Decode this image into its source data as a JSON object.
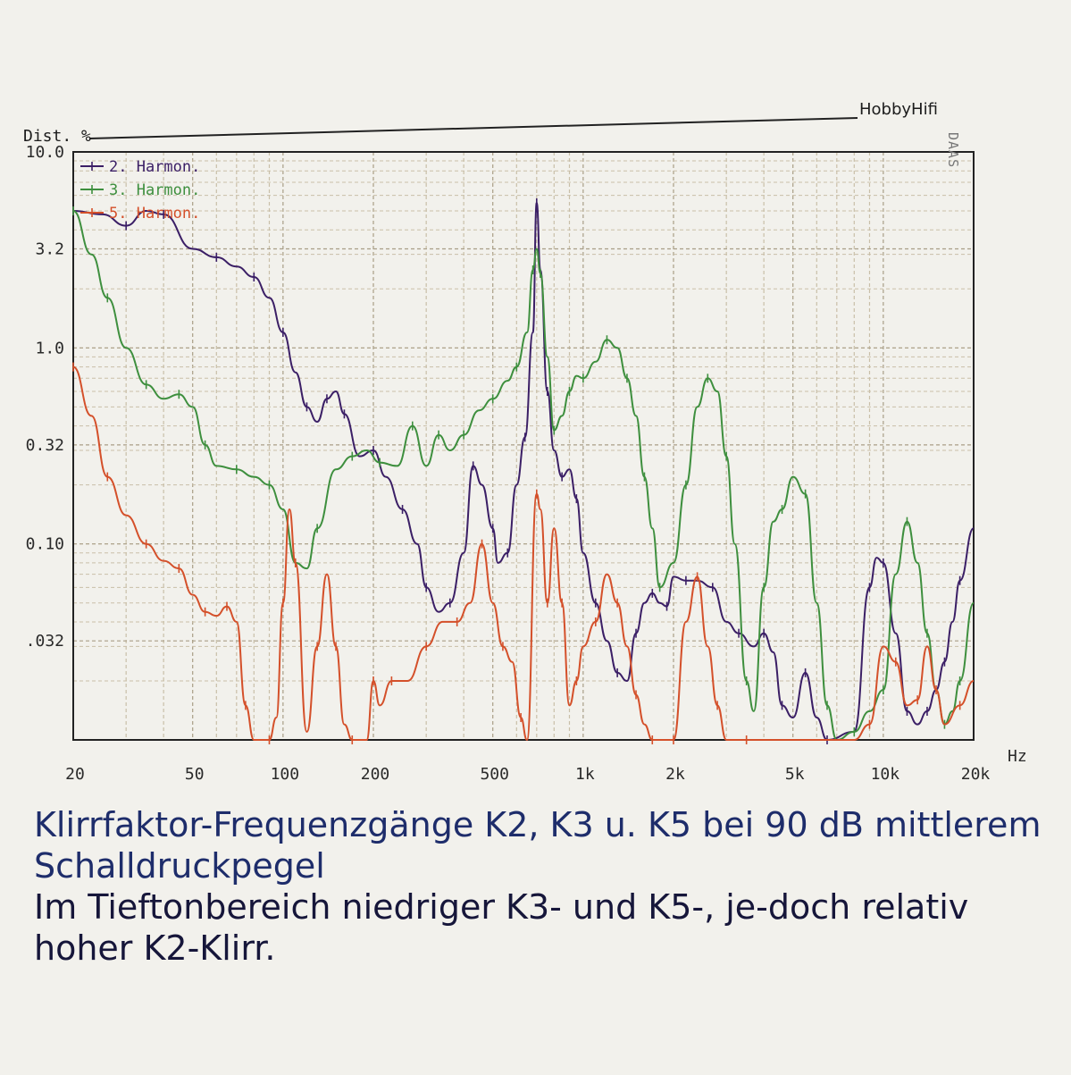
{
  "chart_data": {
    "type": "line",
    "brand": "HobbyHifi",
    "watermark": "DAAS",
    "ylabel": "Dist. %",
    "xunit": "Hz",
    "x_scale": "log",
    "y_scale": "log",
    "xlim": [
      20,
      20000
    ],
    "ylim": [
      0.01,
      10.0
    ],
    "y_ticks": [
      {
        "value": 10.0,
        "label": "10.0"
      },
      {
        "value": 3.2,
        "label": "3.2"
      },
      {
        "value": 1.0,
        "label": "1.0"
      },
      {
        "value": 0.32,
        "label": "0.32"
      },
      {
        "value": 0.1,
        "label": "0.10"
      },
      {
        "value": 0.032,
        "label": ".032"
      }
    ],
    "x_ticks": [
      {
        "value": 20,
        "label": "20"
      },
      {
        "value": 50,
        "label": "50"
      },
      {
        "value": 100,
        "label": "100"
      },
      {
        "value": 200,
        "label": "200"
      },
      {
        "value": 500,
        "label": "500"
      },
      {
        "value": 1000,
        "label": "1k"
      },
      {
        "value": 2000,
        "label": "2k"
      },
      {
        "value": 5000,
        "label": "5k"
      },
      {
        "value": 10000,
        "label": "10k"
      },
      {
        "value": 20000,
        "label": "20k"
      }
    ],
    "grid": true,
    "legend_position": "top-left",
    "series": [
      {
        "name": "2. Harmon.",
        "color": "#3b1f66",
        "points": [
          [
            20,
            5.0
          ],
          [
            25,
            4.8
          ],
          [
            30,
            4.2
          ],
          [
            35,
            5.0
          ],
          [
            40,
            4.8
          ],
          [
            50,
            3.2
          ],
          [
            60,
            2.9
          ],
          [
            70,
            2.6
          ],
          [
            80,
            2.3
          ],
          [
            90,
            1.8
          ],
          [
            100,
            1.2
          ],
          [
            110,
            0.75
          ],
          [
            120,
            0.5
          ],
          [
            130,
            0.42
          ],
          [
            140,
            0.55
          ],
          [
            150,
            0.6
          ],
          [
            160,
            0.46
          ],
          [
            180,
            0.28
          ],
          [
            200,
            0.3
          ],
          [
            220,
            0.22
          ],
          [
            250,
            0.15
          ],
          [
            280,
            0.1
          ],
          [
            300,
            0.06
          ],
          [
            330,
            0.045
          ],
          [
            360,
            0.05
          ],
          [
            400,
            0.09
          ],
          [
            430,
            0.25
          ],
          [
            460,
            0.2
          ],
          [
            500,
            0.12
          ],
          [
            520,
            0.08
          ],
          [
            560,
            0.09
          ],
          [
            600,
            0.2
          ],
          [
            640,
            0.35
          ],
          [
            680,
            1.2
          ],
          [
            700,
            5.5
          ],
          [
            720,
            2.5
          ],
          [
            760,
            0.6
          ],
          [
            800,
            0.3
          ],
          [
            850,
            0.22
          ],
          [
            900,
            0.24
          ],
          [
            950,
            0.17
          ],
          [
            1000,
            0.09
          ],
          [
            1100,
            0.05
          ],
          [
            1200,
            0.032
          ],
          [
            1300,
            0.022
          ],
          [
            1400,
            0.02
          ],
          [
            1500,
            0.035
          ],
          [
            1600,
            0.05
          ],
          [
            1700,
            0.056
          ],
          [
            1800,
            0.05
          ],
          [
            1900,
            0.048
          ],
          [
            2000,
            0.068
          ],
          [
            2200,
            0.065
          ],
          [
            2400,
            0.065
          ],
          [
            2700,
            0.06
          ],
          [
            3000,
            0.04
          ],
          [
            3300,
            0.035
          ],
          [
            3700,
            0.03
          ],
          [
            4000,
            0.035
          ],
          [
            4300,
            0.028
          ],
          [
            4600,
            0.015
          ],
          [
            5000,
            0.013
          ],
          [
            5500,
            0.022
          ],
          [
            6000,
            0.013
          ],
          [
            6500,
            0.01
          ],
          [
            8000,
            0.011
          ],
          [
            9000,
            0.06
          ],
          [
            9500,
            0.085
          ],
          [
            10000,
            0.08
          ],
          [
            11000,
            0.035
          ],
          [
            12000,
            0.014
          ],
          [
            13000,
            0.012
          ],
          [
            14000,
            0.014
          ],
          [
            15000,
            0.018
          ],
          [
            16000,
            0.025
          ],
          [
            17000,
            0.04
          ],
          [
            18000,
            0.065
          ],
          [
            20000,
            0.12
          ]
        ]
      },
      {
        "name": "3. Harmon.",
        "color": "#3e8f3e",
        "points": [
          [
            20,
            5.0
          ],
          [
            23,
            3.0
          ],
          [
            26,
            1.8
          ],
          [
            30,
            1.0
          ],
          [
            35,
            0.65
          ],
          [
            40,
            0.55
          ],
          [
            45,
            0.58
          ],
          [
            50,
            0.5
          ],
          [
            55,
            0.32
          ],
          [
            60,
            0.25
          ],
          [
            70,
            0.24
          ],
          [
            80,
            0.22
          ],
          [
            90,
            0.2
          ],
          [
            100,
            0.15
          ],
          [
            110,
            0.08
          ],
          [
            120,
            0.075
          ],
          [
            130,
            0.12
          ],
          [
            150,
            0.24
          ],
          [
            170,
            0.28
          ],
          [
            190,
            0.3
          ],
          [
            210,
            0.26
          ],
          [
            240,
            0.25
          ],
          [
            270,
            0.4
          ],
          [
            300,
            0.25
          ],
          [
            330,
            0.36
          ],
          [
            360,
            0.3
          ],
          [
            400,
            0.36
          ],
          [
            450,
            0.48
          ],
          [
            500,
            0.55
          ],
          [
            560,
            0.68
          ],
          [
            600,
            0.8
          ],
          [
            650,
            1.2
          ],
          [
            680,
            2.5
          ],
          [
            700,
            3.2
          ],
          [
            720,
            2.4
          ],
          [
            760,
            0.9
          ],
          [
            800,
            0.38
          ],
          [
            850,
            0.45
          ],
          [
            900,
            0.6
          ],
          [
            950,
            0.72
          ],
          [
            1000,
            0.7
          ],
          [
            1100,
            0.85
          ],
          [
            1200,
            1.1
          ],
          [
            1300,
            1.0
          ],
          [
            1400,
            0.7
          ],
          [
            1500,
            0.45
          ],
          [
            1600,
            0.22
          ],
          [
            1700,
            0.12
          ],
          [
            1800,
            0.06
          ],
          [
            2000,
            0.08
          ],
          [
            2200,
            0.2
          ],
          [
            2400,
            0.5
          ],
          [
            2600,
            0.7
          ],
          [
            2800,
            0.6
          ],
          [
            3000,
            0.28
          ],
          [
            3200,
            0.1
          ],
          [
            3500,
            0.02
          ],
          [
            3700,
            0.014
          ],
          [
            4000,
            0.06
          ],
          [
            4300,
            0.13
          ],
          [
            4600,
            0.15
          ],
          [
            5000,
            0.22
          ],
          [
            5500,
            0.18
          ],
          [
            6000,
            0.05
          ],
          [
            6500,
            0.015
          ],
          [
            7000,
            0.01
          ],
          [
            8000,
            0.011
          ],
          [
            9000,
            0.014
          ],
          [
            10000,
            0.018
          ],
          [
            11000,
            0.07
          ],
          [
            12000,
            0.13
          ],
          [
            13000,
            0.08
          ],
          [
            14000,
            0.035
          ],
          [
            15000,
            0.018
          ],
          [
            16000,
            0.012
          ],
          [
            17000,
            0.014
          ],
          [
            18000,
            0.02
          ],
          [
            20000,
            0.05
          ]
        ]
      },
      {
        "name": "5. Harmon.",
        "color": "#d4502a",
        "points": [
          [
            20,
            0.8
          ],
          [
            23,
            0.45
          ],
          [
            26,
            0.22
          ],
          [
            30,
            0.14
          ],
          [
            35,
            0.1
          ],
          [
            40,
            0.082
          ],
          [
            45,
            0.075
          ],
          [
            50,
            0.055
          ],
          [
            55,
            0.045
          ],
          [
            60,
            0.043
          ],
          [
            65,
            0.048
          ],
          [
            70,
            0.04
          ],
          [
            75,
            0.015
          ],
          [
            80,
            0.01
          ],
          [
            90,
            0.01
          ],
          [
            95,
            0.013
          ],
          [
            100,
            0.05
          ],
          [
            105,
            0.15
          ],
          [
            110,
            0.08
          ],
          [
            120,
            0.011
          ],
          [
            130,
            0.03
          ],
          [
            140,
            0.07
          ],
          [
            150,
            0.03
          ],
          [
            160,
            0.012
          ],
          [
            170,
            0.01
          ],
          [
            190,
            0.01
          ],
          [
            200,
            0.02
          ],
          [
            210,
            0.015
          ],
          [
            230,
            0.02
          ],
          [
            260,
            0.02
          ],
          [
            300,
            0.03
          ],
          [
            340,
            0.04
          ],
          [
            380,
            0.04
          ],
          [
            420,
            0.05
          ],
          [
            460,
            0.1
          ],
          [
            500,
            0.05
          ],
          [
            540,
            0.03
          ],
          [
            580,
            0.025
          ],
          [
            620,
            0.013
          ],
          [
            650,
            0.01
          ],
          [
            700,
            0.18
          ],
          [
            720,
            0.15
          ],
          [
            760,
            0.05
          ],
          [
            800,
            0.12
          ],
          [
            850,
            0.05
          ],
          [
            900,
            0.015
          ],
          [
            950,
            0.02
          ],
          [
            1000,
            0.03
          ],
          [
            1100,
            0.04
          ],
          [
            1200,
            0.07
          ],
          [
            1300,
            0.05
          ],
          [
            1400,
            0.03
          ],
          [
            1500,
            0.017
          ],
          [
            1600,
            0.012
          ],
          [
            1700,
            0.01
          ],
          [
            1800,
            0.01
          ],
          [
            2000,
            0.01
          ],
          [
            2200,
            0.04
          ],
          [
            2400,
            0.068
          ],
          [
            2600,
            0.03
          ],
          [
            2800,
            0.015
          ],
          [
            3000,
            0.01
          ],
          [
            3500,
            0.01
          ],
          [
            8000,
            0.01
          ],
          [
            9000,
            0.012
          ],
          [
            10000,
            0.03
          ],
          [
            11000,
            0.025
          ],
          [
            12000,
            0.015
          ],
          [
            13000,
            0.016
          ],
          [
            14000,
            0.03
          ],
          [
            15000,
            0.018
          ],
          [
            16000,
            0.012
          ],
          [
            18000,
            0.015
          ],
          [
            20000,
            0.02
          ]
        ]
      }
    ]
  },
  "caption": {
    "title": "Klirrfaktor-Frequenzgänge K2, K3 u. K5 bei 90 dB mittlerem Schalldruckpegel",
    "note": "Im Tieftonbereich niedriger K3- und K5-, je-doch relativ hoher K2-Klirr."
  }
}
